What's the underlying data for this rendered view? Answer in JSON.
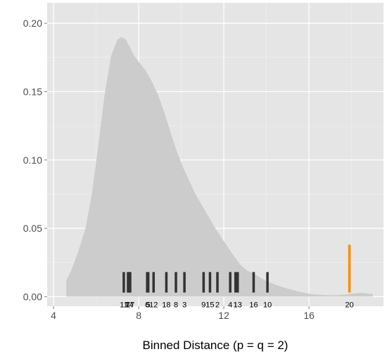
{
  "chart_data": {
    "type": "area",
    "title": "",
    "xlabel": "Binned Distance (p = q = 2)",
    "ylabel": "",
    "xlim": [
      3.7,
      19.5
    ],
    "ylim": [
      -0.007,
      0.215
    ],
    "x_ticks": [
      4,
      8,
      12,
      16
    ],
    "x_tick_labels": [
      "4",
      "8",
      "12",
      "16"
    ],
    "y_ticks": [
      0.0,
      0.05,
      0.1,
      0.15,
      0.2
    ],
    "y_tick_labels": [
      "0.00",
      "0.05",
      "0.10",
      "0.15",
      "0.20"
    ],
    "x_minor_ticks": [
      6,
      10,
      14,
      18
    ],
    "y_minor_ticks": [
      0.025,
      0.075,
      0.125,
      0.175
    ],
    "background": "#e5e5e5",
    "grid": true,
    "grid_color": "#ffffff",
    "density": {
      "color": "#cccccc",
      "x": [
        4.6,
        4.8,
        5.0,
        5.2,
        5.5,
        5.8,
        6.1,
        6.4,
        6.7,
        7.0,
        7.2,
        7.4,
        7.6,
        7.8,
        8.0,
        8.3,
        8.6,
        8.9,
        9.2,
        9.5,
        9.8,
        10.1,
        10.4,
        10.7,
        11.0,
        11.3,
        11.6,
        11.9,
        12.2,
        12.5,
        12.8,
        13.1,
        13.4,
        13.7,
        14.0,
        14.3,
        14.6,
        14.9,
        15.2,
        15.5,
        15.8,
        16.1,
        16.4,
        16.7,
        17.0,
        17.3,
        17.6,
        17.9,
        18.2,
        18.5,
        18.8,
        19.0
      ],
      "y": [
        0.012,
        0.018,
        0.026,
        0.035,
        0.05,
        0.075,
        0.11,
        0.148,
        0.176,
        0.188,
        0.19,
        0.188,
        0.182,
        0.176,
        0.172,
        0.166,
        0.158,
        0.148,
        0.135,
        0.12,
        0.106,
        0.094,
        0.084,
        0.074,
        0.066,
        0.058,
        0.05,
        0.043,
        0.036,
        0.029,
        0.023,
        0.019,
        0.017,
        0.014,
        0.0115,
        0.0095,
        0.0078,
        0.0063,
        0.005,
        0.0038,
        0.0028,
        0.002,
        0.0015,
        0.0012,
        0.001,
        0.001,
        0.0015,
        0.002,
        0.0025,
        0.0028,
        0.0022,
        0.002
      ]
    },
    "rug": {
      "color": "#333333",
      "y_bottom": 0.003,
      "y_top": 0.018,
      "points": [
        {
          "x": 7.3,
          "label": "11"
        },
        {
          "x": 7.5,
          "label": "7"
        },
        {
          "x": 7.55,
          "label": "14"
        },
        {
          "x": 7.6,
          "label": "17"
        },
        {
          "x": 8.4,
          "label": "6"
        },
        {
          "x": 8.45,
          "label": "5"
        },
        {
          "x": 8.7,
          "label": "12"
        },
        {
          "x": 9.3,
          "label": "18"
        },
        {
          "x": 9.75,
          "label": "8"
        },
        {
          "x": 10.15,
          "label": "3"
        },
        {
          "x": 11.05,
          "label": "9"
        },
        {
          "x": 11.35,
          "label": "15"
        },
        {
          "x": 11.7,
          "label": "2"
        },
        {
          "x": 12.3,
          "label": "4"
        },
        {
          "x": 12.55,
          "label": "1"
        },
        {
          "x": 12.65,
          "label": "13"
        },
        {
          "x": 13.4,
          "label": "16"
        },
        {
          "x": 14.05,
          "label": "10"
        }
      ]
    },
    "highlight": {
      "x": 17.9,
      "label": "20",
      "color": "#ff8c00",
      "y_bottom": 0.003,
      "y_top": 0.038
    }
  }
}
